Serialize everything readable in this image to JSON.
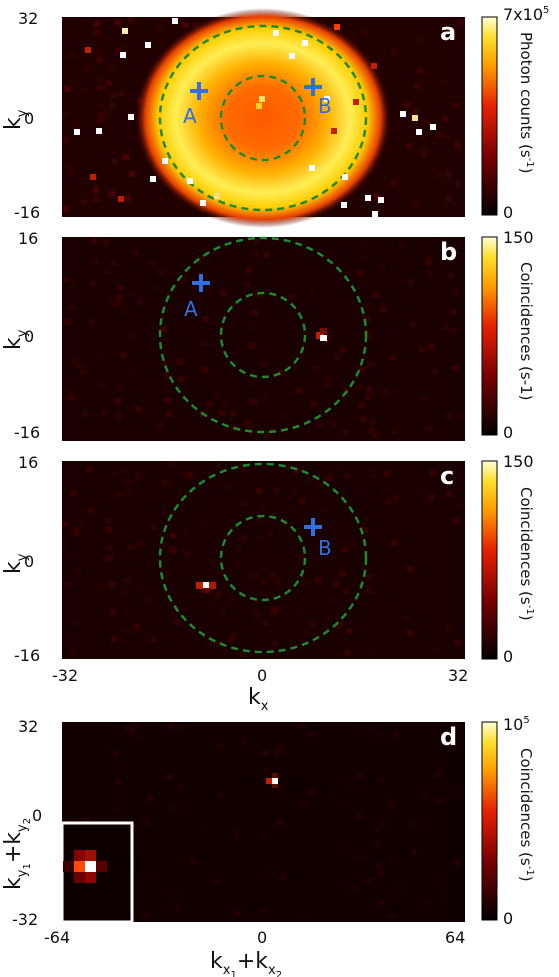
{
  "chart_data": [
    {
      "type": "heatmap",
      "panel": "a",
      "xlim": [
        -32,
        32
      ],
      "ylim": [
        -16,
        32
      ],
      "ylabel": "k",
      "ylabel_sub": "y",
      "yticks": [
        "32",
        "0",
        "-16"
      ],
      "colorbar": {
        "min_label": "0",
        "max_label": "7x10",
        "max_label_sup": "5",
        "label": "Photon counts (s",
        "label_sup": "-1",
        "label_end": ")"
      },
      "markers": [
        {
          "label": "A",
          "x": -10,
          "y": 12
        },
        {
          "label": "B",
          "x": 8,
          "y": 13
        }
      ],
      "rings": [
        8.5,
        21.5
      ]
    },
    {
      "type": "heatmap",
      "panel": "b",
      "xlim": [
        -32,
        32
      ],
      "ylim": [
        -16,
        16
      ],
      "ylabel": "k",
      "ylabel_sub": "y",
      "yticks": [
        "16",
        "0",
        "-16"
      ],
      "colorbar": {
        "min_label": "0",
        "max_label": "150",
        "label": "Coincidences (s-1)"
      },
      "markers": [
        {
          "label": "A",
          "x": -10,
          "y": 4
        }
      ],
      "hotspot": {
        "x": 8.5,
        "y": -3.5
      },
      "rings": [
        7,
        15
      ]
    },
    {
      "type": "heatmap",
      "panel": "c",
      "xlim": [
        -32,
        32
      ],
      "ylim": [
        -16,
        16
      ],
      "ylabel": "k",
      "ylabel_sub": "y",
      "xlabel": "k",
      "xlabel_sub": "x",
      "xticks": [
        "-32",
        "0",
        "32"
      ],
      "yticks": [
        "16",
        "0",
        "-16"
      ],
      "colorbar": {
        "min_label": "0",
        "max_label": "150",
        "label": "Coincidences (s",
        "label_sup": "-1",
        "label_end": ")"
      },
      "markers": [
        {
          "label": "B",
          "x": 8,
          "y": 5
        }
      ],
      "hotspot": {
        "x": -9,
        "y": -4
      },
      "rings": [
        7,
        15
      ]
    },
    {
      "type": "heatmap",
      "panel": "d",
      "xlim": [
        -64,
        64
      ],
      "ylim": [
        -32,
        32
      ],
      "ylabel": "k",
      "ylabel_sub1": "y",
      "ylabel_sub1b": "1",
      "ylabel_mid": "+k",
      "ylabel_sub2": "y",
      "ylabel_sub2b": "2",
      "xlabel": "k",
      "xlabel_sub1": "x",
      "xlabel_sub1b": "1",
      "xlabel_mid": "+k",
      "xlabel_sub2": "x",
      "xlabel_sub2b": "2",
      "xticks": [
        "-64",
        "0",
        "64"
      ],
      "yticks": [
        "32",
        "0",
        "-32"
      ],
      "colorbar": {
        "min_label": "0",
        "max_label": "10",
        "max_label_sup": "5",
        "label": "Coincidences (s",
        "label_sup": "-1",
        "label_end": ")"
      },
      "hotspot": {
        "x": 1.5,
        "y": 1.5
      },
      "inset": true
    }
  ],
  "panel_letters": [
    "a",
    "b",
    "c",
    "d"
  ],
  "colors": {
    "marker": "#2f6fe6",
    "ring": "#1f8a2a",
    "background": "#0e0000"
  }
}
